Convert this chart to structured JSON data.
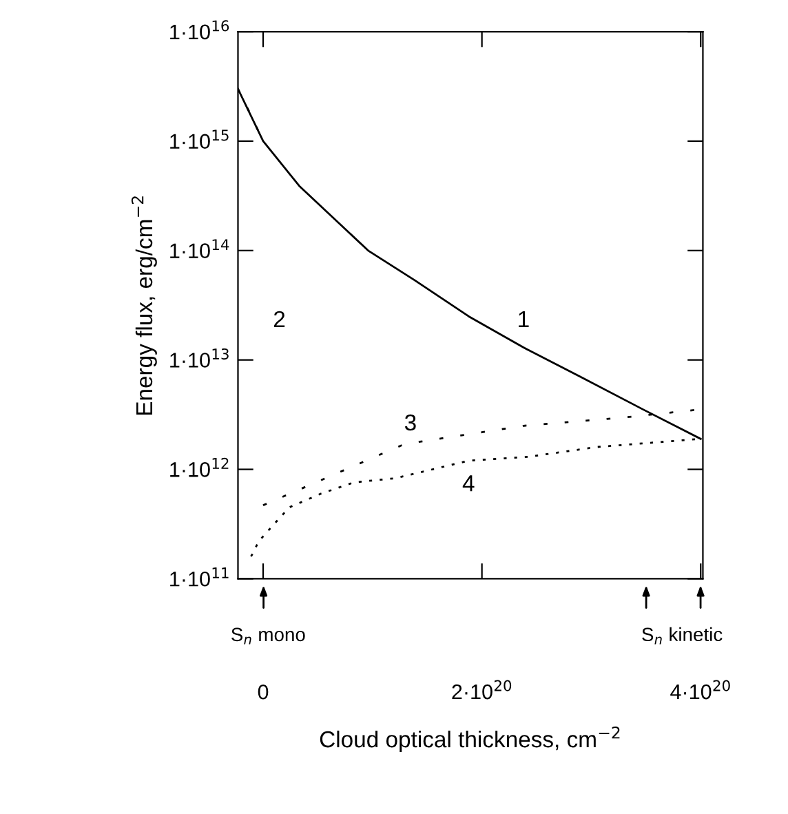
{
  "chart_data": {
    "type": "line",
    "xlabel": "Cloud optical thickness, cm$^{−2}$",
    "ylabel": "Energy flux, erg/cm$^{−2}$",
    "log": "y",
    "xlim": [
      -2.3e+19,
      4.02e+20
    ],
    "xticks": [
      {
        "value": 0,
        "label": "0"
      },
      {
        "value": 2e+20,
        "label": "2·10$^{20}$"
      },
      {
        "value": 4e+20,
        "label": "4·10$^{20}$"
      }
    ],
    "ylim": [
      100000000000.0,
      1e+16
    ],
    "yticks": [
      {
        "value": 100000000000.0,
        "label": "1·10$^{11}$"
      },
      {
        "value": 1000000000000.0,
        "label": "1·10$^{12}$"
      },
      {
        "value": 10000000000000.0,
        "label": "1·10$^{13}$"
      },
      {
        "value": 100000000000000.0,
        "label": "1·10$^{14}$"
      },
      {
        "value": 1000000000000000.0,
        "label": "1·10$^{15}$"
      },
      {
        "value": 1e+16,
        "label": "1·10$^{16}$"
      }
    ],
    "grid": false,
    "series": [
      {
        "color": "#000000",
        "line_style": "solid",
        "x": [
          -2.3e+19,
          0,
          3.3e+19,
          9.6e+19,
          1.38e+20,
          1.88e+20,
          2.38e+20,
          2.89e+20,
          3.48e+20,
          4e+20
        ],
        "values": [
          3000000000000000.0,
          1000000000000000.0,
          390000000000000.0,
          100000000000000.0,
          54000000000000.0,
          25000000000000.0,
          13000000000000.0,
          7100000000000.0,
          3500000000000.0,
          1900000000000.0
        ]
      },
      {
        "color": "#000000",
        "line_style": "dashed",
        "x": [
          -2.3e+19,
          -1.2e+19,
          0
        ],
        "values": [
          3000000000000000.0,
          1800000000000000.0,
          1000000000000000.0
        ]
      },
      {
        "color": "#000000",
        "line_style": "dashed",
        "x": [
          0,
          1.29e+20,
          2.38e+20,
          3.33e+20,
          3.96e+20
        ],
        "values": [
          470000000000.0,
          1700000000000.0,
          2500000000000.0,
          3000000000000.0,
          3500000000000.0
        ]
      },
      {
        "color": "#000000",
        "line_style": "dotted",
        "x": [
          -1.1e+19,
          -4e+18,
          8e+18,
          2.4e+19,
          5.3e+19,
          8.3e+19,
          1.21e+20,
          1.88e+20,
          2.42e+20,
          3.05e+20,
          4e+20
        ],
        "values": [
          160000000000.0,
          220000000000.0,
          300000000000.0,
          450000000000.0,
          600000000000.0,
          760000000000.0,
          830000000000.0,
          1200000000000.0,
          1300000000000.0,
          1600000000000.0,
          1900000000000.0
        ]
      }
    ],
    "annotations": [
      "1",
      "2",
      "3",
      "4",
      "S$_{n}$ mono",
      "S$_{n}$ kinetic"
    ]
  }
}
